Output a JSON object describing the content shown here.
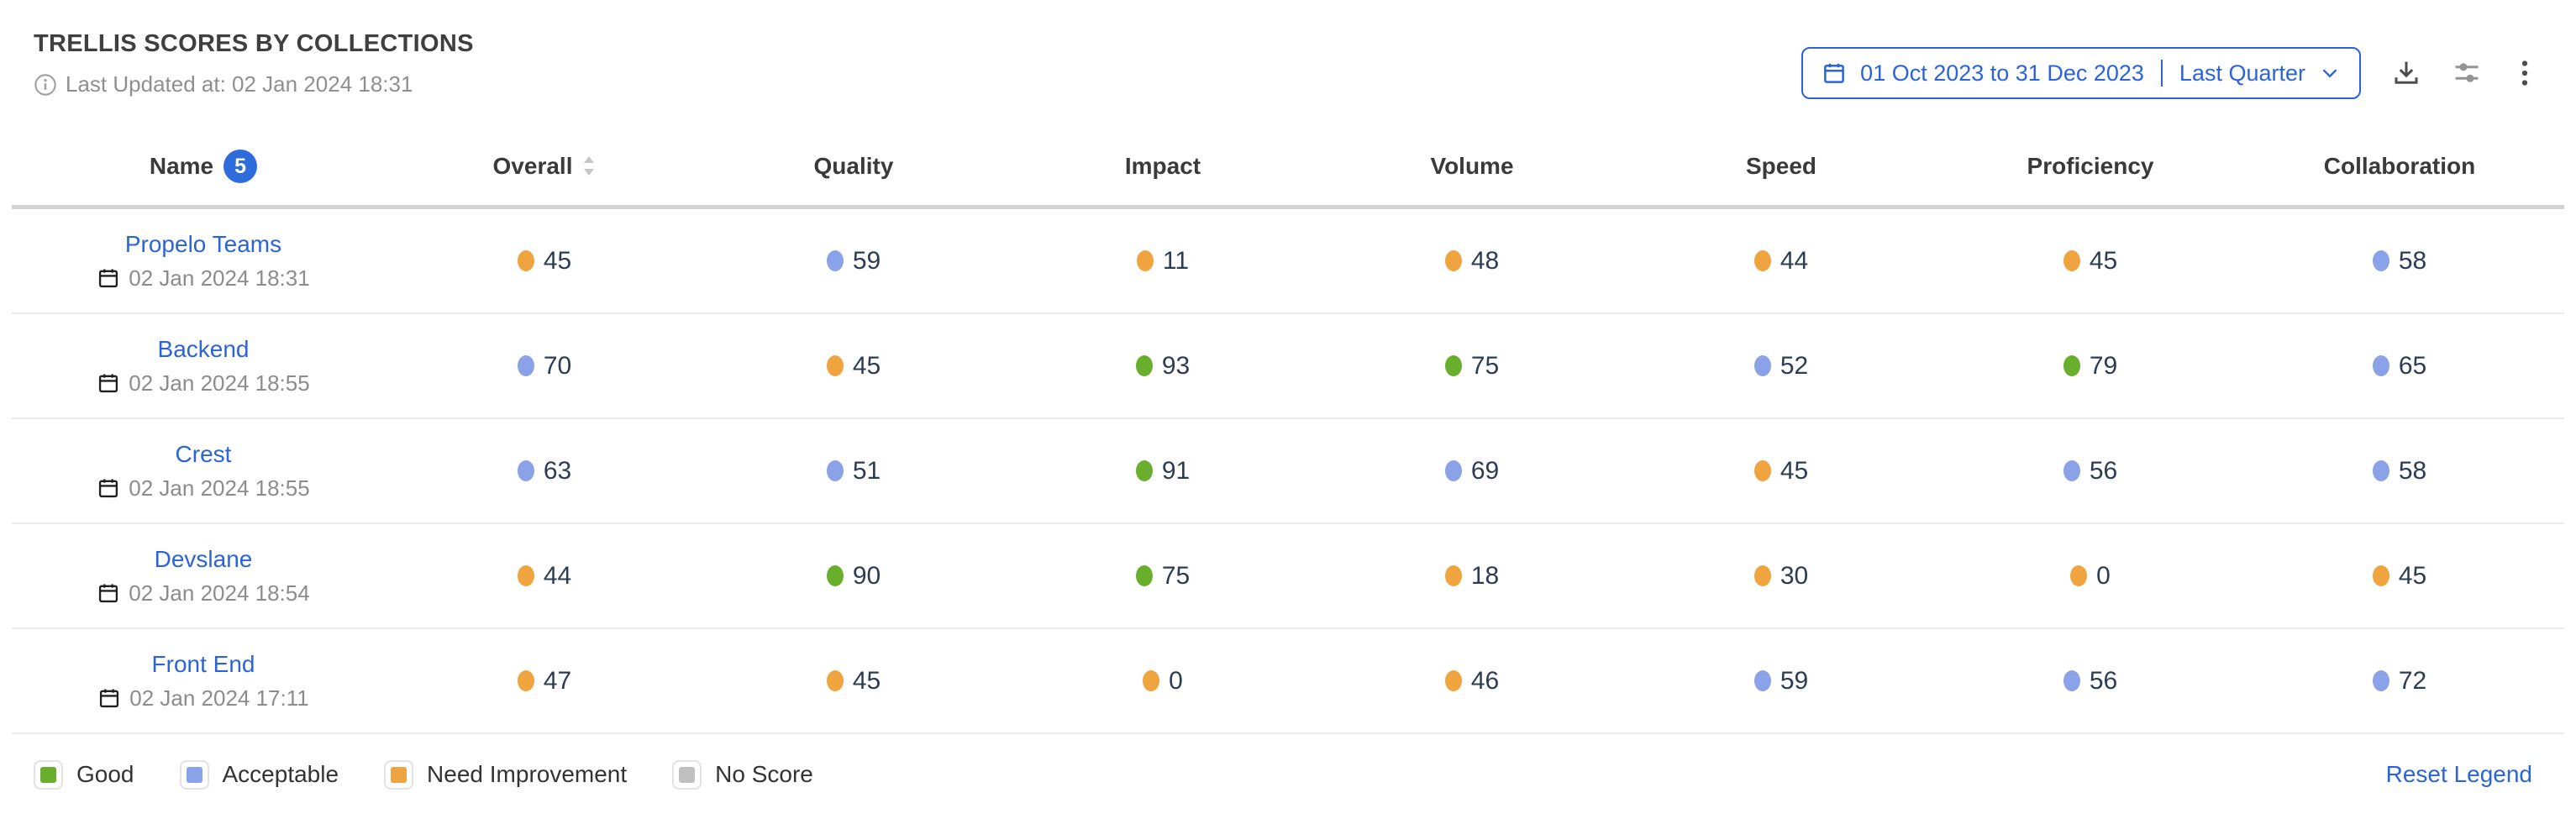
{
  "widget": {
    "title": "TRELLIS SCORES BY COLLECTIONS",
    "last_updated": "Last Updated at: 02 Jan 2024 18:31",
    "date_picker": {
      "range": "01 Oct 2023 to 31 Dec 2023",
      "preset": "Last Quarter"
    },
    "icons": {
      "info": "info-circle-icon",
      "calendar": "calendar-icon",
      "sorter": "sort-carets-icon",
      "chevron": "chevron-down-icon",
      "download": "download-icon",
      "filters": "sliders-icon",
      "more": "kebab-menu-icon"
    }
  },
  "table": {
    "columns": [
      "Name",
      "Overall",
      "Quality",
      "Impact",
      "Volume",
      "Speed",
      "Proficiency",
      "Collaboration"
    ],
    "name_count_badge": "5",
    "rows": [
      {
        "name": "Propelo Teams",
        "updated": "02 Jan 2024 18:31",
        "scores": [
          {
            "value": "45",
            "level": "need_improvement"
          },
          {
            "value": "59",
            "level": "acceptable"
          },
          {
            "value": "11",
            "level": "need_improvement"
          },
          {
            "value": "48",
            "level": "need_improvement"
          },
          {
            "value": "44",
            "level": "need_improvement"
          },
          {
            "value": "45",
            "level": "need_improvement"
          },
          {
            "value": "58",
            "level": "acceptable"
          }
        ]
      },
      {
        "name": "Backend",
        "updated": "02 Jan 2024 18:55",
        "scores": [
          {
            "value": "70",
            "level": "acceptable"
          },
          {
            "value": "45",
            "level": "need_improvement"
          },
          {
            "value": "93",
            "level": "good"
          },
          {
            "value": "75",
            "level": "good"
          },
          {
            "value": "52",
            "level": "acceptable"
          },
          {
            "value": "79",
            "level": "good"
          },
          {
            "value": "65",
            "level": "acceptable"
          }
        ]
      },
      {
        "name": "Crest",
        "updated": "02 Jan 2024 18:55",
        "scores": [
          {
            "value": "63",
            "level": "acceptable"
          },
          {
            "value": "51",
            "level": "acceptable"
          },
          {
            "value": "91",
            "level": "good"
          },
          {
            "value": "69",
            "level": "acceptable"
          },
          {
            "value": "45",
            "level": "need_improvement"
          },
          {
            "value": "56",
            "level": "acceptable"
          },
          {
            "value": "58",
            "level": "acceptable"
          }
        ]
      },
      {
        "name": "Devslane",
        "updated": "02 Jan 2024 18:54",
        "scores": [
          {
            "value": "44",
            "level": "need_improvement"
          },
          {
            "value": "90",
            "level": "good"
          },
          {
            "value": "75",
            "level": "good"
          },
          {
            "value": "18",
            "level": "need_improvement"
          },
          {
            "value": "30",
            "level": "need_improvement"
          },
          {
            "value": "0",
            "level": "need_improvement"
          },
          {
            "value": "45",
            "level": "need_improvement"
          }
        ]
      },
      {
        "name": "Front End",
        "updated": "02 Jan 2024 17:11",
        "scores": [
          {
            "value": "47",
            "level": "need_improvement"
          },
          {
            "value": "45",
            "level": "need_improvement"
          },
          {
            "value": "0",
            "level": "need_improvement"
          },
          {
            "value": "46",
            "level": "need_improvement"
          },
          {
            "value": "59",
            "level": "acceptable"
          },
          {
            "value": "56",
            "level": "acceptable"
          },
          {
            "value": "72",
            "level": "acceptable"
          }
        ]
      }
    ]
  },
  "legend": {
    "items": [
      {
        "label": "Good",
        "level": "good"
      },
      {
        "label": "Acceptable",
        "level": "acceptable"
      },
      {
        "label": "Need Improvement",
        "level": "need_improvement"
      },
      {
        "label": "No Score",
        "level": "no_score"
      }
    ],
    "reset_label": "Reset Legend"
  },
  "colors": {
    "good": "#69af2d",
    "acceptable": "#8aa2e8",
    "need_improvement": "#f0a43f",
    "no_score": "#c0c0c0",
    "accent_blue": "#2b63d9"
  }
}
